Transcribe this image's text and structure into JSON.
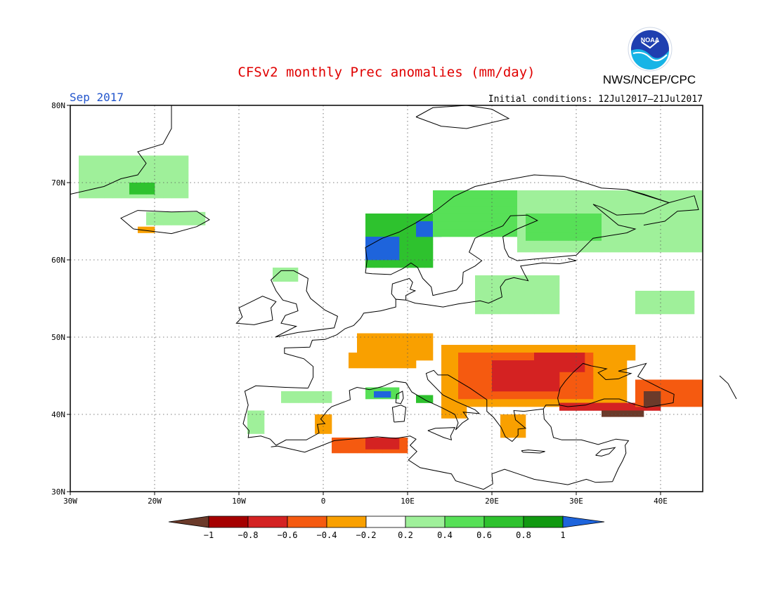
{
  "title": "CFSv2 monthly Prec anomalies (mm/day)",
  "agency": "NWS/NCEP/CPC",
  "logo_text": "NOAA",
  "valid_month": "Sep 2017",
  "initial_conditions": "Initial conditions: 12Jul2017–21Jul2017",
  "colors": {
    "title": "#e00000",
    "month": "#2255cc",
    "coast": "#000000",
    "grid": "#555555"
  },
  "map": {
    "lon_range": [
      -30,
      45
    ],
    "lat_range": [
      30,
      80
    ],
    "lat_ticks": [
      {
        "value": 80,
        "label": "80N"
      },
      {
        "value": 70,
        "label": "70N"
      },
      {
        "value": 60,
        "label": "60N"
      },
      {
        "value": 50,
        "label": "50N"
      },
      {
        "value": 40,
        "label": "40N"
      },
      {
        "value": 30,
        "label": "30N"
      }
    ],
    "lon_ticks": [
      {
        "value": -30,
        "label": "30W"
      },
      {
        "value": -20,
        "label": "20W"
      },
      {
        "value": -10,
        "label": "10W"
      },
      {
        "value": 0,
        "label": "0"
      },
      {
        "value": 10,
        "label": "10E"
      },
      {
        "value": 20,
        "label": "20E"
      },
      {
        "value": 30,
        "label": "30E"
      },
      {
        "value": 40,
        "label": "40E"
      }
    ],
    "grid": "dotted"
  },
  "colorbar": {
    "levels": [
      "-1",
      "-0.8",
      "-0.6",
      "-0.4",
      "-0.2",
      "0.2",
      "0.4",
      "0.6",
      "0.8",
      "1"
    ],
    "colors": [
      "#6b3a2a",
      "#a50000",
      "#d42222",
      "#f55a10",
      "#f9a000",
      "#ffffff",
      "#9ff09a",
      "#57e057",
      "#2ec22e",
      "#119911",
      "#1e64dc"
    ]
  },
  "anomaly_regions": [
    {
      "name": "greenland-east",
      "category": 0.3,
      "lon": [
        -29,
        -16
      ],
      "lat": [
        68,
        73.5
      ]
    },
    {
      "name": "greenland-east-strong",
      "category": 0.7,
      "lon": [
        -23,
        -20
      ],
      "lat": [
        68.5,
        70
      ]
    },
    {
      "name": "iceland",
      "category": 0.3,
      "lon": [
        -21,
        -14
      ],
      "lat": [
        64.5,
        66.2
      ]
    },
    {
      "name": "iceland-south",
      "category": -0.3,
      "lon": [
        -22,
        -20
      ],
      "lat": [
        63.5,
        64.3
      ]
    },
    {
      "name": "scotland",
      "category": 0.3,
      "lon": [
        -6,
        -3
      ],
      "lat": [
        57.2,
        59
      ]
    },
    {
      "name": "norway-west",
      "category": 0.7,
      "lon": [
        5,
        13
      ],
      "lat": [
        59,
        66
      ]
    },
    {
      "name": "norway-coast",
      "category": 1.1,
      "lon": [
        5,
        9
      ],
      "lat": [
        60,
        63
      ]
    },
    {
      "name": "norway-north",
      "category": 1.1,
      "lon": [
        11,
        14
      ],
      "lat": [
        63,
        65
      ]
    },
    {
      "name": "scandinavia-north",
      "category": 0.5,
      "lon": [
        13,
        23
      ],
      "lat": [
        63,
        69
      ]
    },
    {
      "name": "finland-russia",
      "category": 0.3,
      "lon": [
        23,
        45
      ],
      "lat": [
        61,
        69
      ]
    },
    {
      "name": "finland-core",
      "category": 0.5,
      "lon": [
        24,
        33
      ],
      "lat": [
        62.5,
        66
      ]
    },
    {
      "name": "russia-north",
      "category": 0.3,
      "lon": [
        33,
        45
      ],
      "lat": [
        62,
        67
      ]
    },
    {
      "name": "baltic",
      "category": 0.3,
      "lon": [
        18,
        28
      ],
      "lat": [
        53,
        58
      ]
    },
    {
      "name": "russia-west",
      "category": 0.3,
      "lon": [
        37,
        44
      ],
      "lat": [
        53,
        56
      ]
    },
    {
      "name": "france-north",
      "category": -0.3,
      "lon": [
        4,
        13
      ],
      "lat": [
        47,
        50.5
      ]
    },
    {
      "name": "alps",
      "category": -0.3,
      "lon": [
        3,
        11
      ],
      "lat": [
        46,
        48
      ]
    },
    {
      "name": "balkans-east",
      "category": -0.3,
      "lon": [
        14,
        36
      ],
      "lat": [
        41,
        49
      ]
    },
    {
      "name": "balkans-core",
      "category": -0.5,
      "lon": [
        16,
        32
      ],
      "lat": [
        42,
        48
      ]
    },
    {
      "name": "balkans-strong",
      "category": -0.7,
      "lon": [
        20,
        28
      ],
      "lat": [
        43,
        47
      ]
    },
    {
      "name": "romania",
      "category": -0.7,
      "lon": [
        25,
        31
      ],
      "lat": [
        45.5,
        48
      ]
    },
    {
      "name": "turkey-north",
      "category": -0.7,
      "lon": [
        28,
        40
      ],
      "lat": [
        40.5,
        41.5
      ]
    },
    {
      "name": "turkey-east",
      "category": -0.5,
      "lon": [
        37,
        45
      ],
      "lat": [
        41,
        44.5
      ]
    },
    {
      "name": "caucasus",
      "category": -1.1,
      "lon": [
        38,
        40
      ],
      "lat": [
        41,
        43
      ]
    },
    {
      "name": "anatolia-brown",
      "category": -1.1,
      "lon": [
        33,
        38
      ],
      "lat": [
        39.7,
        40.5
      ]
    },
    {
      "name": "greece",
      "category": -0.3,
      "lon": [
        21,
        24
      ],
      "lat": [
        37,
        40
      ]
    },
    {
      "name": "italy-south",
      "category": -0.3,
      "lon": [
        14,
        17
      ],
      "lat": [
        39.5,
        41
      ]
    },
    {
      "name": "algeria-tunisia",
      "category": -0.5,
      "lon": [
        1,
        10
      ],
      "lat": [
        35,
        37
      ]
    },
    {
      "name": "algeria-strong",
      "category": -0.7,
      "lon": [
        5,
        9
      ],
      "lat": [
        35.5,
        37
      ]
    },
    {
      "name": "spain-north",
      "category": 0.3,
      "lon": [
        -5,
        1
      ],
      "lat": [
        41.5,
        43
      ]
    },
    {
      "name": "portugal",
      "category": 0.3,
      "lon": [
        -9,
        -7
      ],
      "lat": [
        37.5,
        40.5
      ]
    },
    {
      "name": "spain-east",
      "category": -0.3,
      "lon": [
        -1,
        1
      ],
      "lat": [
        37.5,
        40
      ]
    },
    {
      "name": "corsica-region",
      "category": 0.5,
      "lon": [
        5,
        9
      ],
      "lat": [
        42,
        43.5
      ]
    },
    {
      "name": "corsica-blue",
      "category": 1.1,
      "lon": [
        6,
        8
      ],
      "lat": [
        42.2,
        43
      ]
    },
    {
      "name": "sardinia",
      "category": 0.7,
      "lon": [
        11,
        13
      ],
      "lat": [
        41.5,
        42.5
      ]
    },
    {
      "name": "romania-east",
      "category": -0.3,
      "lon": [
        33,
        37
      ],
      "lat": [
        47,
        49
      ]
    }
  ]
}
